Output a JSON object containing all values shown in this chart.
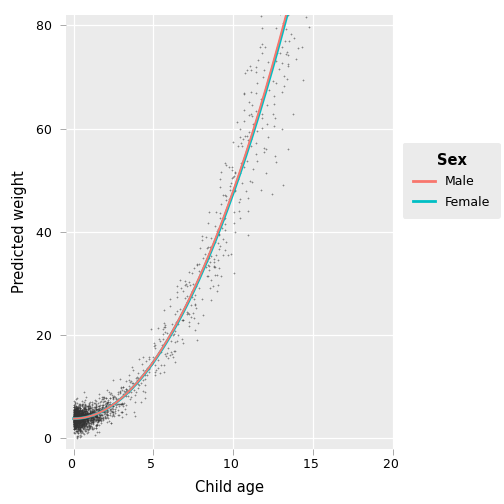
{
  "title": "",
  "xlabel": "Child age",
  "ylabel": "Predicted weight",
  "xlim": [
    -0.5,
    20
  ],
  "ylim": [
    -2,
    82
  ],
  "xticks": [
    0,
    5,
    10,
    15,
    20
  ],
  "yticks": [
    0,
    20,
    40,
    60,
    80
  ],
  "bg_color": "#EBEBEB",
  "grid_color": "#FFFFFF",
  "point_color": "#333333",
  "point_size": 1.8,
  "point_alpha": 0.55,
  "line_male_color": "#F8766D",
  "line_female_color": "#00BFC4",
  "legend_title": "Sex",
  "legend_labels": [
    "Male",
    "Female"
  ],
  "curve_a": 0.44,
  "curve_b": 2.0,
  "curve_c": 3.8,
  "seed": 42,
  "n_young": 1400,
  "n_mid": 500,
  "n_old": 200
}
